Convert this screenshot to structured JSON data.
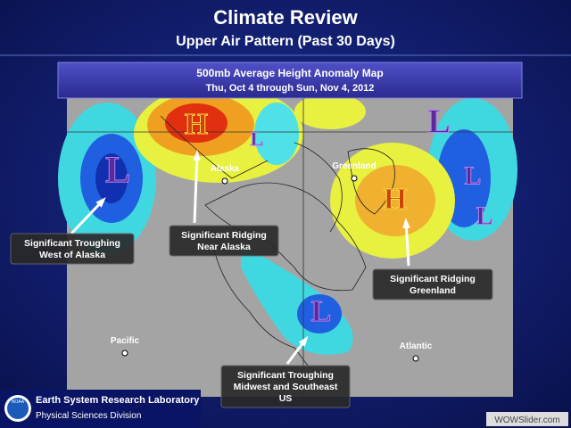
{
  "header": {
    "title": "Climate Review",
    "subtitle": "Upper Air Pattern (Past 30 Days)"
  },
  "map": {
    "title": "500mb Average Height Anomaly Map",
    "date_range": "Thu, Oct 4 through Sun, Nov 4, 2012",
    "places": [
      "Alaska",
      "Greenland",
      "Pacific",
      "Atlantic"
    ],
    "centers": [
      "H",
      "L",
      "L",
      "H",
      "L",
      "L",
      "L",
      "L"
    ]
  },
  "callouts": [
    {
      "lines": [
        "Significant Troughing",
        "West of Alaska"
      ]
    },
    {
      "lines": [
        "Significant Ridging",
        "Near Alaska"
      ]
    },
    {
      "lines": [
        "Significant Ridging",
        "Greenland"
      ]
    },
    {
      "lines": [
        "Significant Troughing",
        "Midwest and Southeast",
        "US"
      ]
    }
  ],
  "footer": {
    "logo": "NOAA",
    "lab": "Earth System Research Laboratory",
    "division": "Physical Sciences Division"
  },
  "watermark": "WOWSlider.com"
}
